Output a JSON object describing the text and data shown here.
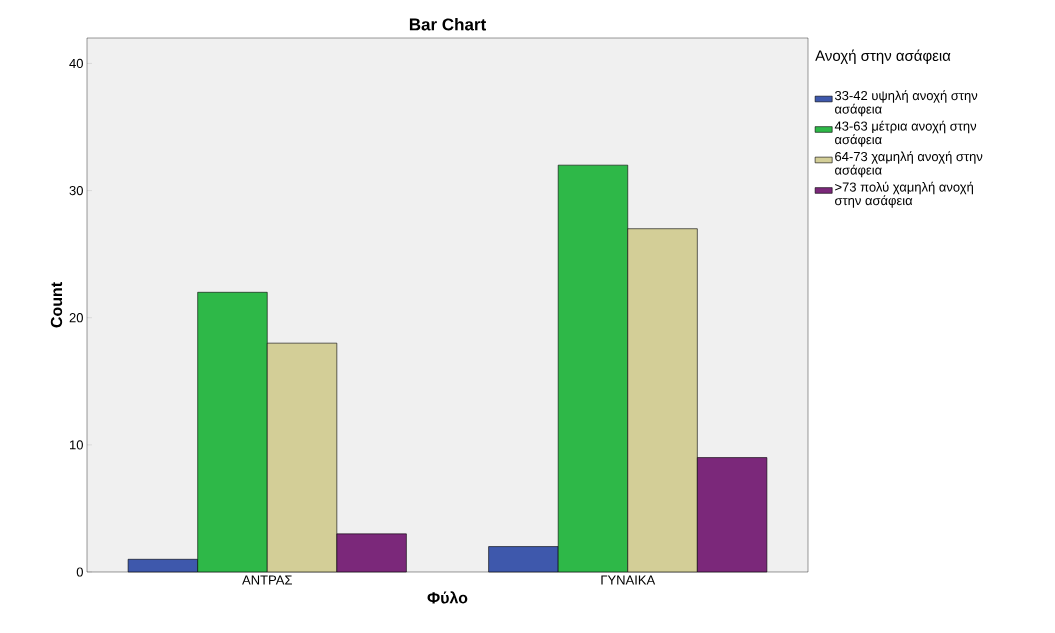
{
  "chart_data": {
    "type": "bar",
    "title": "Bar Chart",
    "xlabel": "Φύλο",
    "ylabel": "Count",
    "legend_title": "Ανοχή στην ασάφεια",
    "categories": [
      "ΑΝΤΡΑΣ",
      "ΓΥΝΑΙΚΑ"
    ],
    "series": [
      {
        "name": "33-42 υψηλή ανοχή στην ασάφεια",
        "color": "#3e58ac",
        "values": [
          1,
          2
        ]
      },
      {
        "name": "43-63 μέτρια ανοχή στην ασάφεια",
        "color": "#2eb848",
        "values": [
          22,
          32
        ]
      },
      {
        "name": "64-73 χαμηλή ανοχή στην ασάφεια",
        "color": "#d3ce97",
        "values": [
          18,
          27
        ]
      },
      {
        "name": ">73 πολύ χαμηλή ανοχή στην ασάφεια",
        "color": "#7b287a",
        "values": [
          3,
          9
        ]
      }
    ],
    "ylim": [
      0,
      42
    ],
    "yticks": [
      0,
      10,
      20,
      30,
      40
    ],
    "grid": false,
    "legend": "right"
  }
}
